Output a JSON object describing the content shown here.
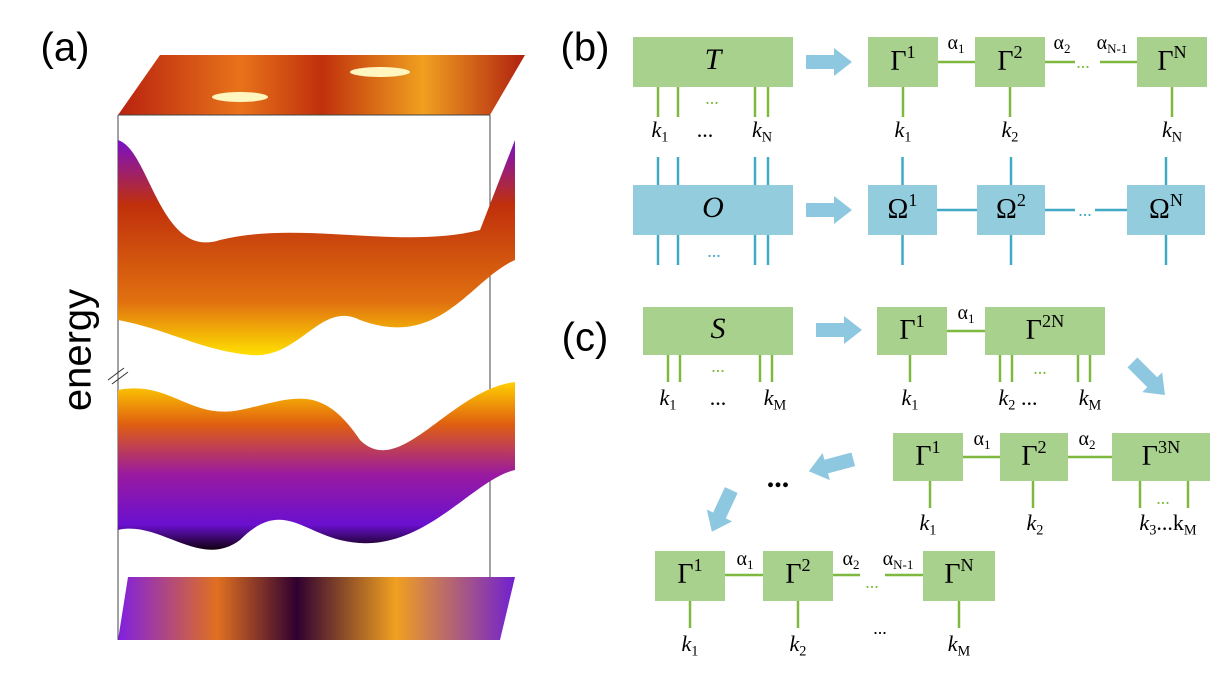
{
  "panel_a": {
    "label": "(a)",
    "axis_label": "energy"
  },
  "panel_b": {
    "label": "(b)",
    "tensor_T": {
      "name": "T",
      "leg_dots": "...",
      "leg_labels": [
        {
          "base": "k",
          "sub": "1"
        },
        "...",
        {
          "base": "k",
          "sub": "N"
        }
      ]
    },
    "mps": {
      "nodes": [
        {
          "base": "Γ",
          "sup": "1"
        },
        {
          "base": "Γ",
          "sup": "2"
        },
        {
          "base": "Γ",
          "sup": "N"
        }
      ],
      "bonds": [
        {
          "base": "α",
          "sub": "1"
        },
        {
          "base": "α",
          "sub": "2"
        },
        {
          "base": "α",
          "sub": "N-1"
        }
      ],
      "bond_dots": "...",
      "leg_labels": [
        {
          "base": "k",
          "sub": "1"
        },
        {
          "base": "k",
          "sub": "2"
        },
        {
          "base": "k",
          "sub": "N"
        }
      ]
    },
    "operator_O": {
      "name": "O",
      "leg_dots": "..."
    },
    "mpo": {
      "nodes": [
        {
          "base": "Ω",
          "sup": "1"
        },
        {
          "base": "Ω",
          "sup": "2"
        },
        {
          "base": "Ω",
          "sup": "N"
        }
      ],
      "bond_dots": "..."
    }
  },
  "panel_c": {
    "label": "(c)",
    "tensor_S": {
      "name": "S",
      "leg_dots": "...",
      "leg_labels": [
        {
          "base": "k",
          "sub": "1"
        },
        "...",
        {
          "base": "k",
          "sub": "M"
        }
      ]
    },
    "step1": {
      "nodes": [
        {
          "base": "Γ",
          "sup": "1"
        },
        {
          "base": "Γ",
          "sup": "2N"
        }
      ],
      "bonds": [
        {
          "base": "α",
          "sub": "1"
        }
      ],
      "leg_dots": "...",
      "leg_labels": [
        {
          "base": "k",
          "sub": "1"
        },
        {
          "base": "k",
          "sub": "2",
          "after": " ..."
        },
        {
          "base": "k",
          "sub": "M"
        }
      ]
    },
    "step2": {
      "nodes": [
        {
          "base": "Γ",
          "sup": "1"
        },
        {
          "base": "Γ",
          "sup": "2"
        },
        {
          "base": "Γ",
          "sup": "3N"
        }
      ],
      "bonds": [
        {
          "base": "α",
          "sub": "1"
        },
        {
          "base": "α",
          "sub": "2"
        }
      ],
      "leg_dots": "...",
      "leg_labels": [
        {
          "base": "k",
          "sub": "1"
        },
        {
          "base": "k",
          "sub": "2"
        },
        {
          "base": "k",
          "sub": "3",
          "after": "...k",
          "sub2": "M"
        }
      ]
    },
    "ellipsis": "...",
    "final": {
      "nodes": [
        {
          "base": "Γ",
          "sup": "1"
        },
        {
          "base": "Γ",
          "sup": "2"
        },
        {
          "base": "Γ",
          "sup": "N"
        }
      ],
      "bonds": [
        {
          "base": "α",
          "sub": "1"
        },
        {
          "base": "α",
          "sub": "2"
        },
        {
          "base": "α",
          "sub": "N-1"
        }
      ],
      "bond_dots": "...",
      "leg_dots": "...",
      "leg_labels": [
        {
          "base": "k",
          "sub": "1"
        },
        {
          "base": "k",
          "sub": "2"
        },
        {
          "base": "k",
          "sub": "M"
        }
      ]
    }
  }
}
